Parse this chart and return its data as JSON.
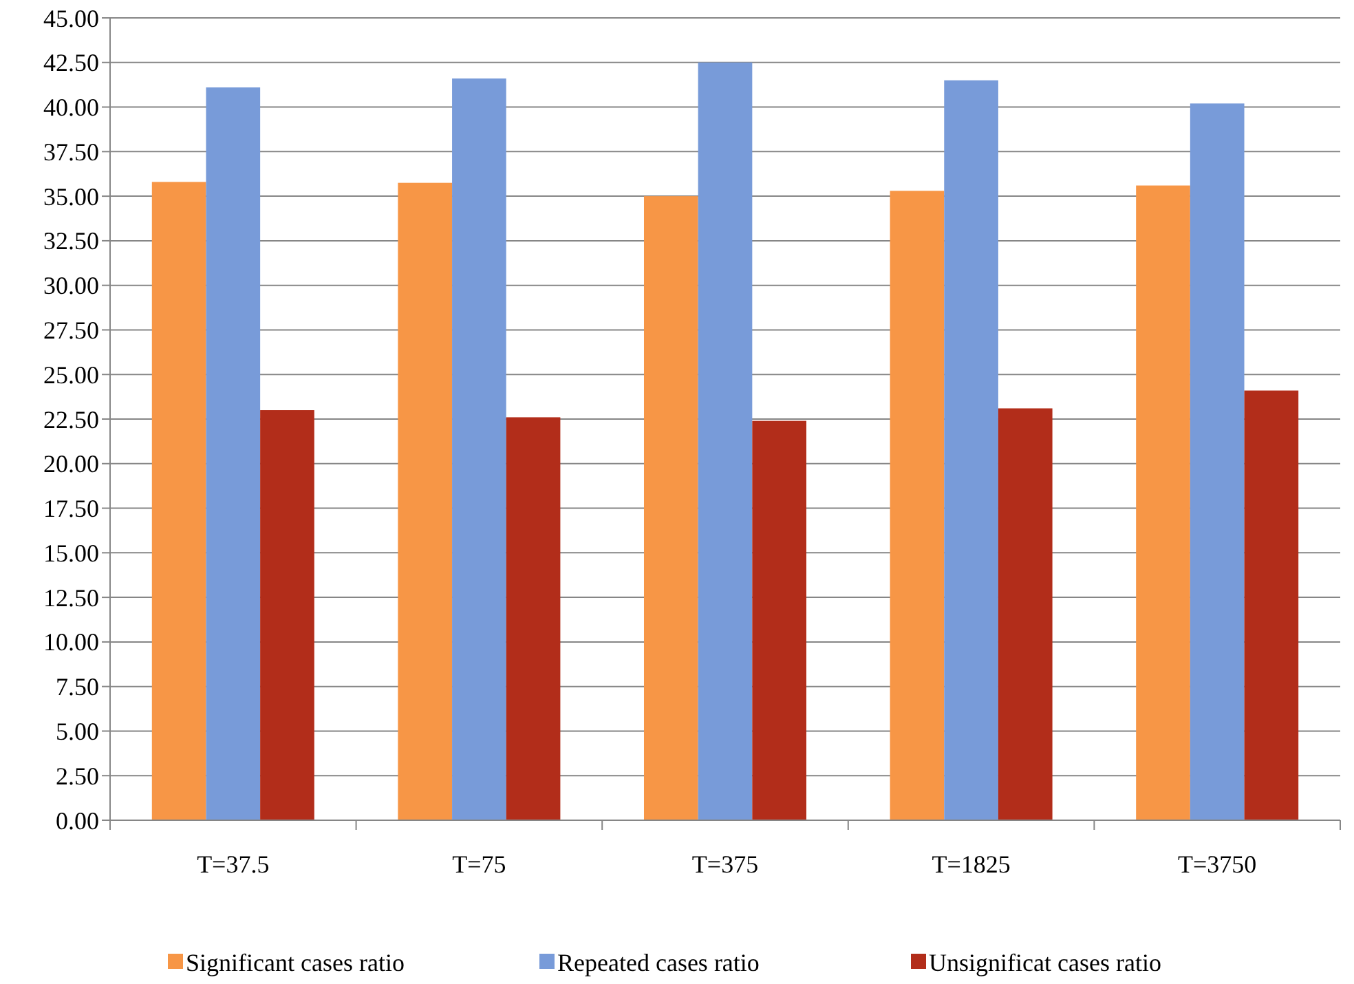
{
  "chart_data": {
    "type": "bar",
    "categories": [
      "T=37.5",
      "T=75",
      "T=375",
      "T=1825",
      "T=3750"
    ],
    "series": [
      {
        "name": "Significant cases ratio",
        "color": "#f79646",
        "values": [
          35.8,
          35.75,
          35.0,
          35.3,
          35.6
        ]
      },
      {
        "name": "Repeated cases ratio",
        "color": "#789bd9",
        "values": [
          41.1,
          41.6,
          42.5,
          41.5,
          40.2
        ]
      },
      {
        "name": "Unsignificat cases ratio",
        "color": "#b22d1a",
        "values": [
          23.0,
          22.6,
          22.4,
          23.1,
          24.1
        ]
      }
    ],
    "ylim": [
      0,
      45
    ],
    "yticks": [
      {
        "value": 0,
        "label": "0.00"
      },
      {
        "value": 2.5,
        "label": "2.50"
      },
      {
        "value": 5,
        "label": "5.00"
      },
      {
        "value": 7.5,
        "label": "7.50"
      },
      {
        "value": 10,
        "label": "10.00"
      },
      {
        "value": 12.5,
        "label": "12.50"
      },
      {
        "value": 15,
        "label": "15.00"
      },
      {
        "value": 17.5,
        "label": "17.50"
      },
      {
        "value": 20,
        "label": "20.00"
      },
      {
        "value": 22.5,
        "label": "22.50"
      },
      {
        "value": 25,
        "label": "25.00"
      },
      {
        "value": 27.5,
        "label": "27.50"
      },
      {
        "value": 30,
        "label": "30.00"
      },
      {
        "value": 32.5,
        "label": "32.50"
      },
      {
        "value": 35,
        "label": "35.00"
      },
      {
        "value": 37.5,
        "label": "37.50"
      },
      {
        "value": 40,
        "label": "40.00"
      },
      {
        "value": 42.5,
        "label": "42.50"
      },
      {
        "value": 45,
        "label": "45.00"
      }
    ],
    "grid": "y",
    "legend": "bottom"
  }
}
